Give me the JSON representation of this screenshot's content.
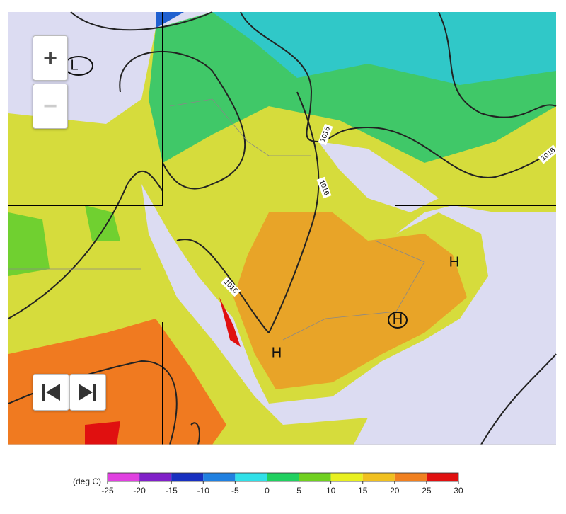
{
  "controls": {
    "zoom_in": "+",
    "zoom_out": "−"
  },
  "map": {
    "isobar_labels": [
      "1016",
      "1016",
      "1016",
      "1016"
    ],
    "pressure_centers": [
      "L",
      "H",
      "H",
      "H"
    ]
  },
  "legend": {
    "unit": "(deg C)",
    "ticks": [
      -25,
      -20,
      -15,
      -10,
      -5,
      0,
      5,
      10,
      15,
      20,
      25,
      30
    ],
    "colors": [
      "#e040e0",
      "#8020c8",
      "#1830c0",
      "#2080e0",
      "#30e0e8",
      "#20d060",
      "#70d020",
      "#e8f020",
      "#f0c020",
      "#f08020",
      "#e01010"
    ]
  }
}
